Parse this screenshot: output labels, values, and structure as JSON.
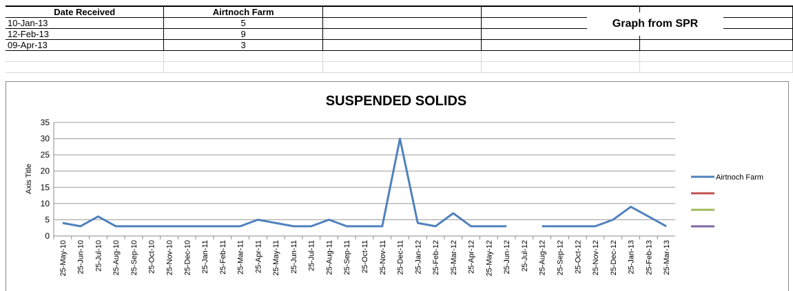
{
  "table": {
    "header": [
      "Date Received",
      "Airtnoch Farm"
    ],
    "rows": [
      [
        "10-Jan-13",
        "5"
      ],
      [
        "12-Feb-13",
        "9"
      ],
      [
        "09-Apr-13",
        "3"
      ]
    ]
  },
  "label": "Graph from SPR",
  "chart_data": {
    "type": "line",
    "title": "SUSPENDED SOLIDS",
    "y_label": "Axis Title",
    "categories": [
      "25-May-10",
      "25-Jun-10",
      "25-Jul-10",
      "25-Aug-10",
      "25-Sep-10",
      "25-Oct-10",
      "25-Nov-10",
      "25-Dec-10",
      "25-Jan-11",
      "25-Feb-11",
      "25-Mar-11",
      "25-Apr-11",
      "25-May-11",
      "25-Jun-11",
      "25-Jul-11",
      "25-Aug-11",
      "25-Sep-11",
      "25-Oct-11",
      "25-Nov-11",
      "25-Dec-11",
      "25-Jan-12",
      "25-Feb-12",
      "25-Mar-12",
      "25-Apr-12",
      "25-May-12",
      "25-Jun-12",
      "25-Jul-12",
      "25-Aug-12",
      "25-Sep-12",
      "25-Oct-12",
      "25-Nov-12",
      "25-Dec-12",
      "25-Jan-13",
      "25-Feb-13",
      "25-Mar-13"
    ],
    "series": [
      {
        "name": "Airtnoch Farm",
        "color": "#4f81bd",
        "values": [
          4,
          3,
          6,
          3,
          3,
          3,
          3,
          3,
          3,
          3,
          3,
          5,
          4,
          3,
          3,
          5,
          3,
          3,
          3,
          30,
          4,
          3,
          7,
          3,
          3,
          3,
          null,
          3,
          3,
          3,
          3,
          5,
          9,
          6,
          3
        ]
      }
    ],
    "ylim": [
      0,
      35
    ],
    "yticks": [
      0,
      5,
      10,
      15,
      20,
      25,
      30,
      35
    ],
    "grid": true,
    "legend": "right"
  }
}
